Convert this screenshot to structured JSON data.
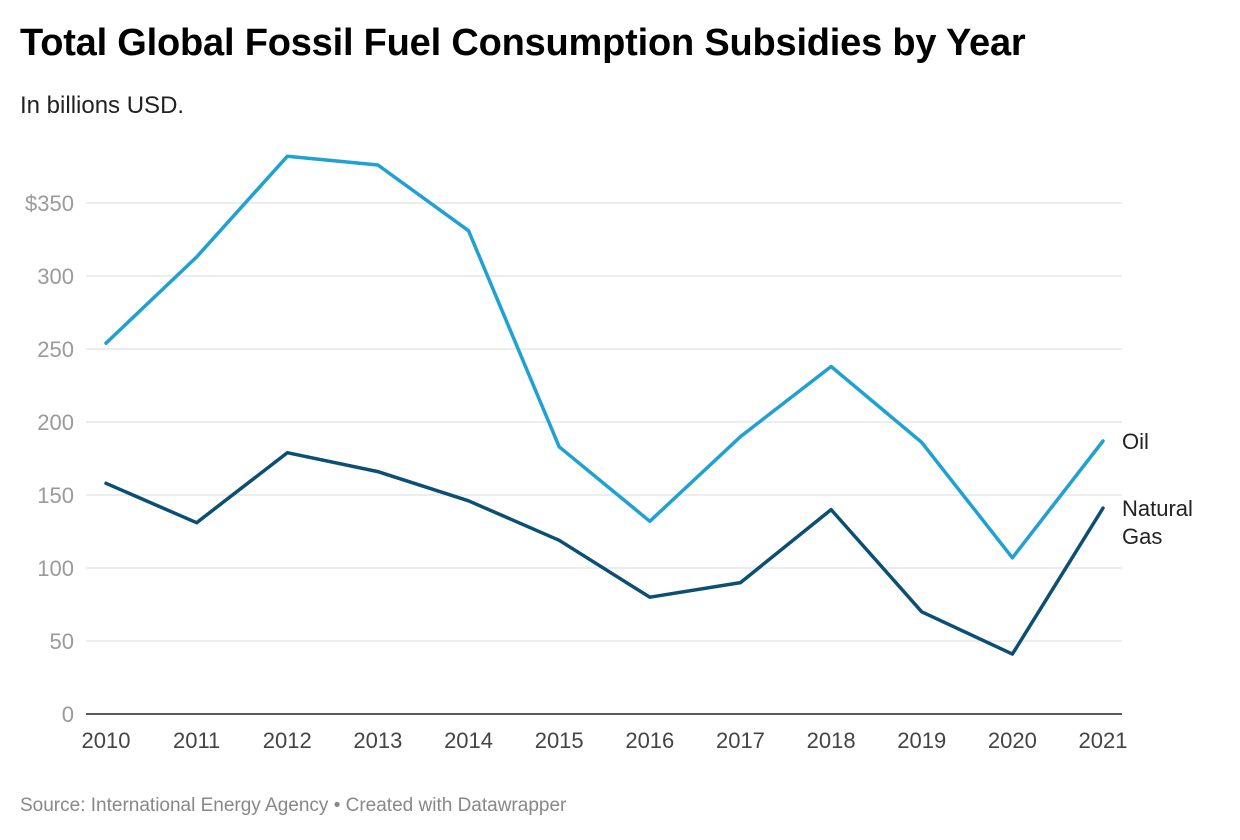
{
  "header": {
    "title": "Total Global Fossil Fuel Consumption Subsidies by Year",
    "subtitle": "In billions USD."
  },
  "footer": {
    "source": "Source: International Energy Agency • Created with Datawrapper"
  },
  "chart_data": {
    "type": "line",
    "title": "Total Global Fossil Fuel Consumption Subsidies by Year",
    "subtitle": "In billions USD.",
    "x": [
      2010,
      2011,
      2012,
      2013,
      2014,
      2015,
      2016,
      2017,
      2018,
      2019,
      2020,
      2021
    ],
    "x_tick_labels": [
      "2010",
      "2011",
      "2012",
      "2013",
      "2014",
      "2015",
      "2016",
      "2017",
      "2018",
      "2019",
      "2020",
      "2021"
    ],
    "y_ticks": [
      0,
      50,
      100,
      150,
      200,
      250,
      300,
      350
    ],
    "y_tick_labels": [
      "0",
      "50",
      "100",
      "150",
      "200",
      "250",
      "300",
      "$350"
    ],
    "ylim": [
      0,
      350
    ],
    "grid": true,
    "legend": "direct labels at right end of lines",
    "series": [
      {
        "name": "Oil",
        "label_lines": [
          "Oil"
        ],
        "color": "#1fa1d2",
        "values": [
          254,
          313,
          382,
          376,
          331,
          183,
          132,
          190,
          238,
          186,
          107,
          187
        ]
      },
      {
        "name": "Natural Gas",
        "label_lines": [
          "Natural",
          "Gas"
        ],
        "color": "#0b4f73",
        "values": [
          158,
          131,
          179,
          166,
          146,
          119,
          80,
          90,
          140,
          70,
          41,
          141
        ]
      }
    ]
  }
}
